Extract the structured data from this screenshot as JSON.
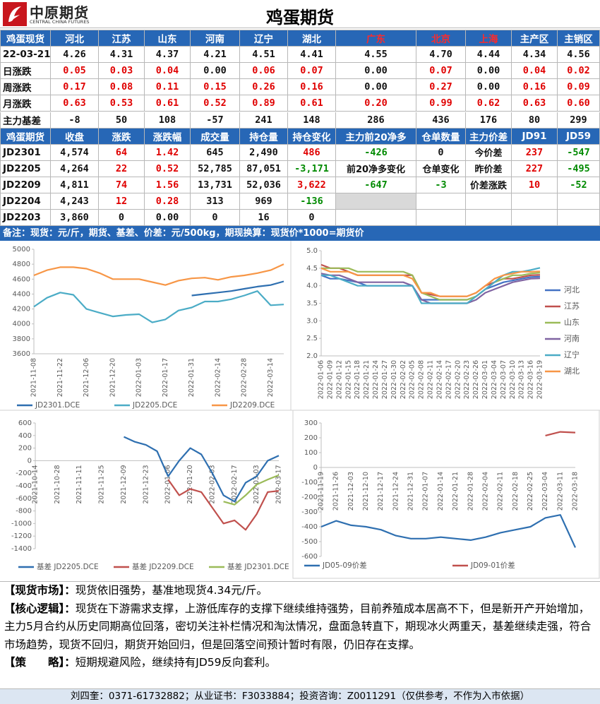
{
  "header": {
    "logo_text": "中原期货",
    "logo_sub": "CENTRAL CHINA FUTURES",
    "title": "鸡蛋期货"
  },
  "spot_table": {
    "header": [
      "鸡蛋现货",
      "河北",
      "江苏",
      "山东",
      "河南",
      "辽宁",
      "湖北",
      "广东",
      "北京",
      "上海",
      "主产区",
      "主销区"
    ],
    "red_header_columns": [
      7,
      8,
      9
    ],
    "rows": [
      {
        "cells": [
          "22-03-21",
          "4.26",
          "4.31",
          "4.37",
          "4.21",
          "4.51",
          "4.41",
          "4.55",
          "4.70",
          "4.44",
          "4.34",
          "4.56"
        ],
        "signed": false
      },
      {
        "cells": [
          "日涨跌",
          "0.05",
          "0.03",
          "0.04",
          "0.00",
          "0.06",
          "0.07",
          "0.00",
          "0.07",
          "0.00",
          "0.04",
          "0.02"
        ],
        "signed": true
      },
      {
        "cells": [
          "周涨跌",
          "0.17",
          "0.08",
          "0.11",
          "0.15",
          "0.26",
          "0.16",
          "0.00",
          "0.27",
          "0.00",
          "0.16",
          "0.09"
        ],
        "signed": true
      },
      {
        "cells": [
          "月涨跌",
          "0.63",
          "0.53",
          "0.61",
          "0.52",
          "0.89",
          "0.61",
          "0.20",
          "0.99",
          "0.62",
          "0.63",
          "0.60"
        ],
        "signed": true
      },
      {
        "cells": [
          "主力基差",
          "-8",
          "50",
          "108",
          "-57",
          "241",
          "148",
          "286",
          "436",
          "176",
          "80",
          "299"
        ],
        "signed": false
      }
    ]
  },
  "futures_table": {
    "header": [
      "鸡蛋期货",
      "收盘",
      "涨跌",
      "涨跌幅",
      "成交量",
      "持仓量",
      "持仓变化",
      "主力前20净多",
      "仓单数量",
      "主力价差",
      "JD91",
      "JD59"
    ],
    "signed_columns": [
      2,
      3,
      6,
      7,
      8,
      10,
      11
    ],
    "rows": [
      [
        "JD2301",
        "4,574",
        "64",
        "1.42",
        "645",
        "2,490",
        "486",
        "-426",
        "0",
        "今价差",
        "237",
        "-547"
      ],
      [
        "JD2205",
        "4,264",
        "22",
        "0.52",
        "52,785",
        "87,051",
        "-3,171",
        "前20净多变化",
        "仓单变化",
        "昨价差",
        "227",
        "-495"
      ],
      [
        "JD2209",
        "4,811",
        "74",
        "1.56",
        "13,731",
        "52,036",
        "3,622",
        "-647",
        "-3",
        "价差涨跌",
        "10",
        "-52"
      ],
      [
        "JD2204",
        "4,243",
        "12",
        "0.28",
        "313",
        "969",
        "-136"
      ],
      [
        "JD2203",
        "3,860",
        "0",
        "0.00",
        "0",
        "16",
        "0"
      ]
    ]
  },
  "note": "备注：现货：元/斤，期货、基差、价差：元/500kg，期现换算：现货价*1000=期货价",
  "chart_data": [
    {
      "type": "line",
      "legend": "bottom",
      "grid": false,
      "x_axis_at_zero": false,
      "categories": [
        "2021-11-08",
        null,
        "2021-11-22",
        null,
        "2021-12-06",
        null,
        "2021-12-20",
        null,
        "2022-01-03",
        null,
        "2022-01-17",
        null,
        "2022-01-31",
        null,
        "2022-02-14",
        null,
        "2022-02-28",
        null,
        "2022-03-14",
        null
      ],
      "ylim": [
        3600,
        5000
      ],
      "yticks": [
        3600,
        3800,
        4000,
        4200,
        4400,
        4600,
        4800,
        5000
      ],
      "series": [
        {
          "name": "JD2301.DCE",
          "color": "#2e6fb0",
          "values": [
            null,
            null,
            null,
            null,
            null,
            null,
            null,
            null,
            null,
            null,
            null,
            null,
            4380,
            4400,
            4420,
            4440,
            4470,
            4500,
            4520,
            4570
          ]
        },
        {
          "name": "JD2205.DCE",
          "color": "#4bacc6",
          "values": [
            4230,
            4350,
            4420,
            4390,
            4200,
            4150,
            4100,
            4120,
            4130,
            4020,
            4060,
            4180,
            4220,
            4300,
            4300,
            4330,
            4380,
            4440,
            4250,
            4260
          ]
        },
        {
          "name": "JD2209.DCE",
          "color": "#f79646",
          "values": [
            4650,
            4720,
            4760,
            4760,
            4740,
            4680,
            4600,
            4600,
            4600,
            4560,
            4520,
            4580,
            4610,
            4620,
            4590,
            4630,
            4650,
            4680,
            4720,
            4800
          ]
        }
      ]
    },
    {
      "type": "line",
      "legend": "right",
      "grid": false,
      "x_axis_at_zero": false,
      "categories": [
        "2022-01-06",
        "2022-01-09",
        "2022-01-12",
        "2022-01-15",
        "2022-01-18",
        "2022-01-21",
        "2022-01-24",
        "2022-01-27",
        "2022-01-30",
        "2022-02-02",
        "2022-02-05",
        "2022-02-08",
        "2022-02-11",
        "2022-02-14",
        "2022-02-17",
        "2022-02-20",
        "2022-02-23",
        "2022-02-26",
        "2022-03-01",
        "2022-03-04",
        "2022-03-07",
        "2022-03-10",
        "2022-03-13",
        "2022-03-16",
        "2022-03-19"
      ],
      "ylim": [
        2,
        5
      ],
      "yticks": [
        {
          "value": 2,
          "label": "2.0"
        },
        2.5,
        {
          "value": 3,
          "label": "3.0"
        },
        3.5,
        {
          "value": 4,
          "label": "4.0"
        },
        4.5,
        {
          "value": 5,
          "label": "5.0"
        }
      ],
      "series": [
        {
          "name": "河北",
          "color": "#4472c4",
          "values": [
            4.3,
            4.2,
            4.2,
            4.15,
            4.1,
            4.0,
            4.0,
            4.0,
            4.0,
            4.0,
            4.0,
            3.6,
            3.6,
            3.6,
            3.6,
            3.6,
            3.6,
            3.7,
            3.9,
            4.0,
            4.1,
            4.15,
            4.2,
            4.25,
            4.26
          ]
        },
        {
          "name": "江苏",
          "color": "#c0504d",
          "values": [
            4.6,
            4.5,
            4.5,
            4.4,
            4.3,
            4.3,
            4.3,
            4.3,
            4.3,
            4.3,
            4.3,
            3.8,
            3.75,
            3.7,
            3.7,
            3.7,
            3.7,
            3.8,
            4.0,
            4.1,
            4.2,
            4.2,
            4.25,
            4.3,
            4.31
          ]
        },
        {
          "name": "山东",
          "color": "#9bbb59",
          "values": [
            4.5,
            4.5,
            4.5,
            4.5,
            4.4,
            4.4,
            4.4,
            4.4,
            4.4,
            4.4,
            4.3,
            3.8,
            3.7,
            3.6,
            3.6,
            3.6,
            3.6,
            3.7,
            3.9,
            4.1,
            4.2,
            4.3,
            4.3,
            4.35,
            4.37
          ]
        },
        {
          "name": "河南",
          "color": "#8064a2",
          "values": [
            4.35,
            4.3,
            4.3,
            4.2,
            4.1,
            4.1,
            4.1,
            4.1,
            4.1,
            4.1,
            4.0,
            3.6,
            3.5,
            3.5,
            3.5,
            3.5,
            3.5,
            3.6,
            3.8,
            3.9,
            4.0,
            4.1,
            4.15,
            4.2,
            4.21
          ]
        },
        {
          "name": "辽宁",
          "color": "#4bacc6",
          "values": [
            4.3,
            4.3,
            4.2,
            4.1,
            4.0,
            4.0,
            4.0,
            4.0,
            4.0,
            4.0,
            4.0,
            3.5,
            3.5,
            3.5,
            3.5,
            3.5,
            3.5,
            3.7,
            3.9,
            4.1,
            4.3,
            4.4,
            4.4,
            4.45,
            4.51
          ]
        },
        {
          "name": "湖北",
          "color": "#f79646",
          "values": [
            4.5,
            4.4,
            4.4,
            4.4,
            4.3,
            4.3,
            4.3,
            4.3,
            4.3,
            4.3,
            4.2,
            3.8,
            3.8,
            3.7,
            3.7,
            3.7,
            3.7,
            3.8,
            4.0,
            4.2,
            4.3,
            4.35,
            4.4,
            4.4,
            4.41
          ]
        }
      ]
    },
    {
      "type": "line",
      "legend": "bottom",
      "grid": false,
      "x_axis_at_zero": true,
      "categories": [
        "2021-10-14",
        null,
        "2021-10-28",
        null,
        "2021-11-11",
        null,
        "2021-11-25",
        null,
        "2021-12-09",
        null,
        "2021-12-23",
        null,
        "2022-01-06",
        null,
        "2022-01-20",
        null,
        "2022-02-03",
        null,
        "2022-02-17",
        null,
        "2022-03-03",
        null,
        "2022-03-17"
      ],
      "ylim": [
        -1400,
        600
      ],
      "yticks": [
        -1400,
        -1200,
        -1000,
        -800,
        -600,
        -400,
        -200,
        0,
        200,
        400,
        600
      ],
      "series": [
        {
          "name": "基差 JD2205.DCE",
          "color": "#2e6fb0",
          "values": [
            null,
            null,
            null,
            null,
            null,
            null,
            null,
            null,
            380,
            300,
            250,
            150,
            -250,
            0,
            200,
            100,
            -200,
            -550,
            -650,
            -350,
            -250,
            0,
            80
          ]
        },
        {
          "name": "基差 JD2209.DCE",
          "color": "#c0504d",
          "values": [
            null,
            null,
            null,
            null,
            null,
            null,
            null,
            null,
            null,
            null,
            null,
            null,
            -300,
            -550,
            -450,
            -500,
            -750,
            -1000,
            -950,
            -1100,
            -850,
            -500,
            -480
          ]
        },
        {
          "name": "基差 JD2301.DCE",
          "color": "#9bbb59",
          "values": [
            null,
            null,
            null,
            null,
            null,
            null,
            null,
            null,
            null,
            null,
            null,
            null,
            null,
            null,
            null,
            null,
            null,
            -650,
            -700,
            -550,
            -380,
            -300,
            -230
          ]
        }
      ]
    },
    {
      "type": "line",
      "legend": "bottom",
      "grid": false,
      "x_axis_at_zero": true,
      "categories": [
        "2021-11-19",
        "2021-11-26",
        "2021-12-03",
        "2021-12-10",
        "2021-12-17",
        "2021-12-24",
        "2021-12-31",
        "2022-01-07",
        "2022-01-14",
        "2022-01-21",
        "2022-01-28",
        "2022-02-04",
        "2022-02-11",
        "2022-02-18",
        "2022-02-25",
        "2022-03-04",
        "2022-03-11",
        "2022-03-18"
      ],
      "ylim": [
        -600,
        300
      ],
      "yticks": [
        -600,
        -500,
        -400,
        -300,
        -200,
        -100,
        0,
        100,
        200,
        300
      ],
      "series": [
        {
          "name": "JD05-09价差",
          "color": "#2e6fb0",
          "values": [
            -400,
            -360,
            -390,
            -400,
            -420,
            -460,
            -480,
            -480,
            -470,
            -480,
            -490,
            -470,
            -440,
            -420,
            -400,
            -340,
            -320,
            -540
          ]
        },
        {
          "name": "JD09-01价差",
          "color": "#c0504d",
          "values": [
            null,
            null,
            null,
            null,
            null,
            null,
            null,
            null,
            null,
            null,
            null,
            null,
            null,
            null,
            null,
            215,
            240,
            235
          ]
        }
      ]
    }
  ],
  "commentary": [
    {
      "label": "【现货市场】：",
      "text": "现货依旧强势，基准地现货4.34元/斤。"
    },
    {
      "label": "【核心逻辑】：",
      "text": "现货在下游需求支撑，上游低库存的支撑下继续维持强势，目前养殖成本居高不下，但是新开产开始增加，主力5月合约从历史同期高位回落，密切关注补栏情况和淘汰情况，盘面急转直下，期现冰火两重天，基差继续走强，符合市场趋势，现货不回归，期货开始回归，但是回落空间预计暂时有限，仍旧存在支撑。"
    },
    {
      "label": "【策　　略】：",
      "text": "短期规避风险，继续持有JD59反向套利。"
    }
  ],
  "footer": "刘四奎：0371-61732882；从业证书：F3033884；投资咨询：Z0011291（仅供参考，不作为入市依据）"
}
